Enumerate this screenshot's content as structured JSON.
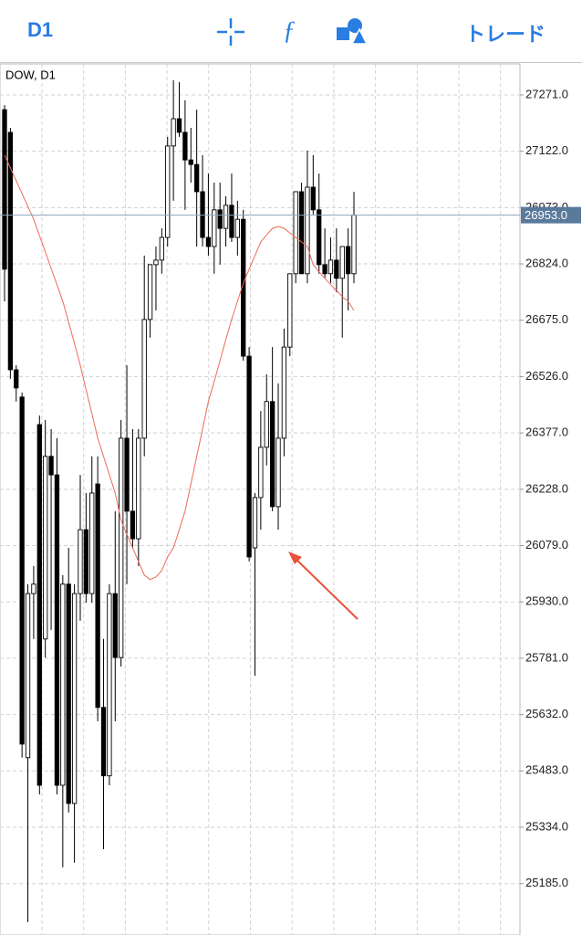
{
  "toolbar": {
    "timeframe": "D1",
    "trade": "トレード"
  },
  "chart_data": {
    "type": "candlestick",
    "title": "DOW, D1",
    "categories": [
      null,
      null,
      null,
      null,
      null,
      null,
      null,
      null,
      null,
      null,
      null,
      null,
      null,
      null,
      null,
      null,
      null,
      null,
      null,
      null,
      null,
      null,
      null,
      null,
      null,
      null,
      null,
      null,
      null,
      null,
      null,
      null,
      null,
      null,
      null,
      null,
      null,
      null,
      null,
      null,
      null,
      null,
      null,
      null,
      null,
      null,
      null,
      null,
      null,
      null,
      null,
      null,
      null,
      null,
      null,
      null,
      null,
      null,
      null,
      null,
      null
    ],
    "open": [
      27232,
      27172,
      26544,
      26472,
      25518,
      25952,
      26399,
      25832,
      26315,
      26266,
      25445,
      25977,
      25397,
      25952,
      26121,
      25952,
      26242,
      25651,
      25470,
      25952,
      25783,
      26363,
      26170,
      26097,
      26363,
      26677,
      26822,
      26834,
      26894,
      27136,
      27208,
      27172,
      27099,
      27087,
      27015,
      26894,
      26870,
      26967,
      26918,
      26979,
      26894,
      26942,
      26580,
      26073,
      26206,
      26339,
      26460,
      26182,
      26363,
      26604,
      26798,
      27015,
      26798,
      27027,
      26967,
      26822,
      26798,
      26834,
      26786,
      26870,
      26798
    ],
    "high": [
      27244,
      27184,
      26556,
      26484,
      25977,
      26025,
      26423,
      26411,
      26387,
      26363,
      26001,
      26073,
      25977,
      26266,
      26218,
      26315,
      26315,
      25832,
      25977,
      26170,
      26411,
      26556,
      26387,
      26387,
      26846,
      26822,
      26870,
      26918,
      27160,
      27310,
      27305,
      27257,
      27184,
      27232,
      27112,
      27063,
      27039,
      27039,
      27003,
      27063,
      26991,
      26967,
      26604,
      26218,
      26435,
      26532,
      26604,
      26508,
      26653,
      26798,
      27015,
      27039,
      27124,
      27112,
      27063,
      26918,
      26894,
      26918,
      26870,
      26918,
      27015
    ],
    "low": [
      26725,
      26520,
      26460,
      25518,
      25083,
      25832,
      25421,
      25783,
      25856,
      25421,
      25228,
      25373,
      25240,
      25880,
      25928,
      25928,
      25614,
      25276,
      25445,
      25614,
      25759,
      25977,
      26073,
      26025,
      26315,
      26629,
      26701,
      26798,
      26870,
      26991,
      27160,
      26967,
      27039,
      26870,
      26870,
      26846,
      26798,
      26822,
      26870,
      26882,
      26846,
      26568,
      26037,
      25735,
      26121,
      26291,
      26170,
      26121,
      26315,
      26580,
      26773,
      26798,
      26773,
      26955,
      26798,
      26786,
      26773,
      26749,
      26629,
      26701,
      26773
    ],
    "close": [
      26810,
      26544,
      26496,
      25554,
      25952,
      25977,
      25445,
      26315,
      26266,
      25445,
      25977,
      25397,
      25952,
      26121,
      25952,
      26218,
      25651,
      25470,
      25952,
      25783,
      26363,
      26170,
      26097,
      26363,
      26677,
      26822,
      26834,
      26894,
      27136,
      27208,
      27172,
      27099,
      27087,
      27015,
      26894,
      26870,
      26967,
      26918,
      26979,
      26894,
      26942,
      26580,
      26049,
      26206,
      26339,
      26460,
      26182,
      26363,
      26604,
      26798,
      27015,
      26798,
      27027,
      26967,
      26822,
      26798,
      26834,
      26786,
      26870,
      26798,
      26953
    ],
    "ma": {
      "color": "#ee6a55",
      "values": [
        27112,
        27078,
        27044,
        27010,
        26976,
        26942,
        26899,
        26856,
        26812,
        26769,
        26725,
        26670,
        26614,
        26556,
        26491,
        26428,
        26363,
        26315,
        26266,
        26218,
        26146,
        26109,
        26073,
        26037,
        26001,
        25989,
        25996,
        26013,
        26049,
        26073,
        26121,
        26170,
        26242,
        26315,
        26387,
        26460,
        26513,
        26568,
        26624,
        26677,
        26725,
        26773,
        26810,
        26846,
        26882,
        26901,
        26918,
        26923,
        26918,
        26906,
        26894,
        26882,
        26870,
        26822,
        26803,
        26786,
        26769,
        26754,
        26737,
        26725,
        26701
      ]
    },
    "up_color": "#ffffff",
    "down_color": "#000000",
    "ylim": [
      25049,
      27353
    ],
    "yticks": [
      {
        "value": 27271,
        "label": "27271.0"
      },
      {
        "value": 27122,
        "label": "27122.0"
      },
      {
        "value": 26973,
        "label": "26973.0"
      },
      {
        "value": 26824,
        "label": "26824.0"
      },
      {
        "value": 26675,
        "label": "26675.0"
      },
      {
        "value": 26526,
        "label": "26526.0"
      },
      {
        "value": 26377,
        "label": "26377.0"
      },
      {
        "value": 26228,
        "label": "26228.0"
      },
      {
        "value": 26079,
        "label": "26079.0"
      },
      {
        "value": 25930,
        "label": "25930.0"
      },
      {
        "value": 25781,
        "label": "25781.0"
      },
      {
        "value": 25632,
        "label": "25632.0"
      },
      {
        "value": 25483,
        "label": "25483.0"
      },
      {
        "value": 25334,
        "label": "25334.0"
      },
      {
        "value": 25185,
        "label": "25185.0"
      }
    ],
    "current_price": {
      "value": 26953,
      "label": "26953.0"
    },
    "grid": true
  }
}
